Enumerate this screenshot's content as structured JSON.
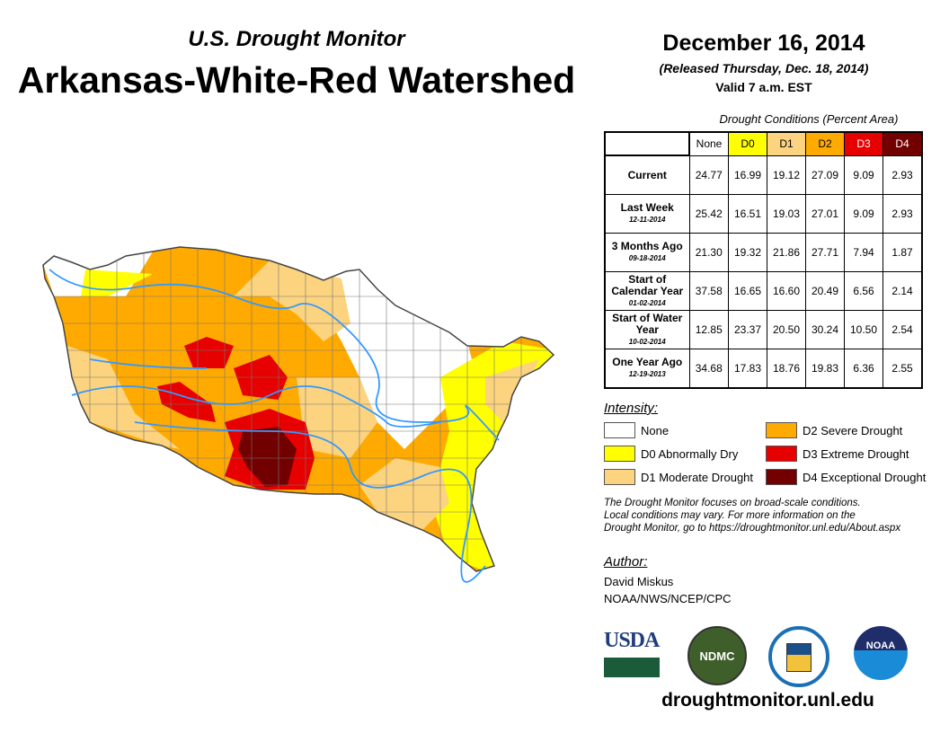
{
  "header": {
    "subtitle": "U.S. Drought Monitor",
    "title": "Arkansas-White-Red Watershed",
    "date": "December 16, 2014",
    "released": "(Released Thursday, Dec. 18, 2014)",
    "valid": "Valid 7 a.m. EST"
  },
  "table": {
    "caption": "Drought Conditions (Percent Area)",
    "columns": [
      "None",
      "D0",
      "D1",
      "D2",
      "D3",
      "D4"
    ],
    "column_colors": [
      "#FFFFFF",
      "#FFFF00",
      "#FCD37F",
      "#FFAA00",
      "#E60000",
      "#730000"
    ],
    "rows": [
      {
        "label": "Current",
        "date": "",
        "values": [
          "24.77",
          "16.99",
          "19.12",
          "27.09",
          "9.09",
          "2.93"
        ]
      },
      {
        "label": "Last Week",
        "date": "12-11-2014",
        "values": [
          "25.42",
          "16.51",
          "19.03",
          "27.01",
          "9.09",
          "2.93"
        ]
      },
      {
        "label": "3 Months Ago",
        "date": "09-18-2014",
        "values": [
          "21.30",
          "19.32",
          "21.86",
          "27.71",
          "7.94",
          "1.87"
        ]
      },
      {
        "label": "Start of Calendar Year",
        "date": "01-02-2014",
        "values": [
          "37.58",
          "16.65",
          "16.60",
          "20.49",
          "6.56",
          "2.14"
        ]
      },
      {
        "label": "Start of Water Year",
        "date": "10-02-2014",
        "values": [
          "12.85",
          "23.37",
          "20.50",
          "30.24",
          "10.50",
          "2.54"
        ]
      },
      {
        "label": "One Year Ago",
        "date": "12-19-2013",
        "values": [
          "34.68",
          "17.83",
          "18.76",
          "19.83",
          "6.36",
          "2.55"
        ]
      }
    ]
  },
  "legend": {
    "title": "Intensity:",
    "items": [
      {
        "label": "None",
        "color": "#FFFFFF"
      },
      {
        "label": "D0 Abnormally Dry",
        "color": "#FFFF00"
      },
      {
        "label": "D1 Moderate Drought",
        "color": "#FCD37F"
      },
      {
        "label": "D2 Severe Drought",
        "color": "#FFAA00"
      },
      {
        "label": "D3 Extreme Drought",
        "color": "#E60000"
      },
      {
        "label": "D4 Exceptional Drought",
        "color": "#730000"
      }
    ]
  },
  "note": [
    "The Drought Monitor focuses on broad-scale conditions.",
    "Local conditions may vary. For more information on the",
    "Drought Monitor, go to https://droughtmonitor.unl.edu/About.aspx"
  ],
  "author": {
    "label": "Author:",
    "name": "David Miskus",
    "org": "NOAA/NWS/NCEP/CPC"
  },
  "logos": [
    "USDA",
    "NDMC",
    "NOAA"
  ],
  "url": "droughtmonitor.unl.edu"
}
